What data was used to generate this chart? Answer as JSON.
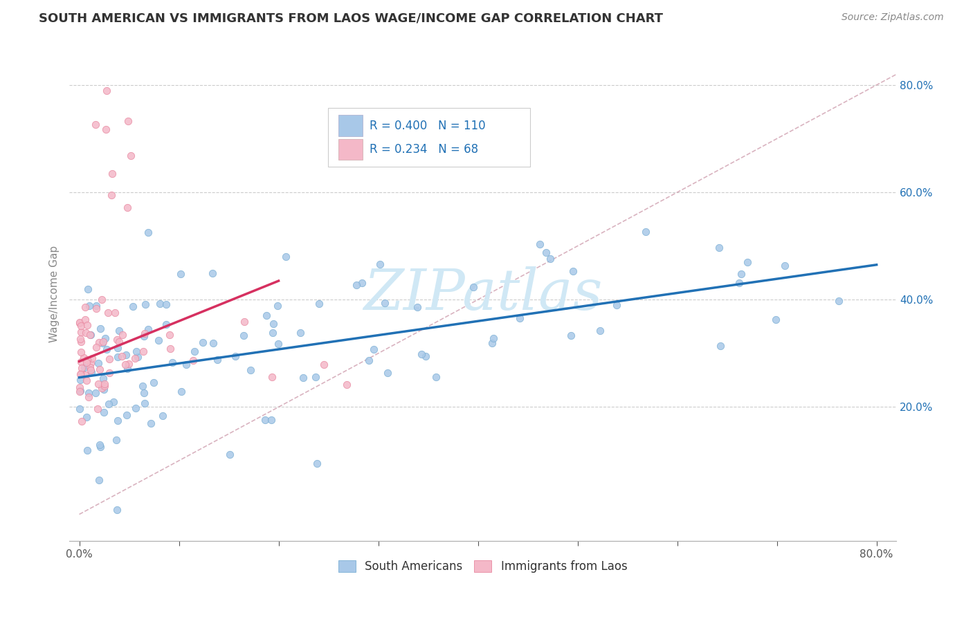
{
  "title": "SOUTH AMERICAN VS IMMIGRANTS FROM LAOS WAGE/INCOME GAP CORRELATION CHART",
  "source": "Source: ZipAtlas.com",
  "ylabel": "Wage/Income Gap",
  "xlim": [
    -0.01,
    0.82
  ],
  "ylim": [
    -0.05,
    0.87
  ],
  "xtick_positions": [
    0.0,
    0.1,
    0.2,
    0.3,
    0.4,
    0.5,
    0.6,
    0.7,
    0.8
  ],
  "xticklabels": [
    "0.0%",
    "",
    "",
    "",
    "",
    "",
    "",
    "",
    "80.0%"
  ],
  "ytick_positions": [
    0.2,
    0.4,
    0.6,
    0.8
  ],
  "ytick_labels": [
    "20.0%",
    "40.0%",
    "60.0%",
    "80.0%"
  ],
  "blue_color": "#a8c8e8",
  "blue_edge_color": "#7bafd4",
  "pink_color": "#f4b8c8",
  "pink_edge_color": "#e888a0",
  "blue_line_color": "#2171b5",
  "pink_line_color": "#d63060",
  "diag_line_color": "#d0a0b0",
  "watermark_color": "#d0e8f5",
  "legend_R_blue": "0.400",
  "legend_N_blue": "110",
  "legend_R_pink": "0.234",
  "legend_N_pink": "68",
  "legend_text_color": "#2171b5",
  "blue_line_x": [
    0.0,
    0.8
  ],
  "blue_line_y": [
    0.255,
    0.465
  ],
  "pink_line_x": [
    0.0,
    0.2
  ],
  "pink_line_y": [
    0.285,
    0.435
  ]
}
